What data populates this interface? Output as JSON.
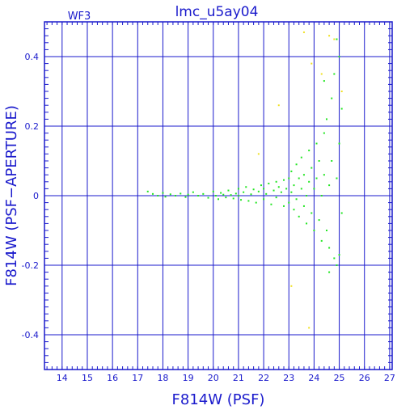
{
  "chart_data": {
    "type": "scatter",
    "title": "lmc_u5ay04",
    "panel_label": "WF3",
    "xlabel": "F814W (PSF)",
    "ylabel": "F814W (PSF−APERTURE)",
    "xlim": [
      13.3,
      27.1
    ],
    "ylim": [
      -0.5,
      0.5
    ],
    "xticks": [
      14,
      15,
      16,
      17,
      18,
      19,
      20,
      21,
      22,
      23,
      24,
      25,
      26,
      27
    ],
    "yticks": [
      -0.4,
      -0.2,
      0,
      0.2,
      0.4
    ],
    "ytick_labels": [
      "-0.4",
      "-0.2",
      "0",
      "0.2",
      "0.4"
    ],
    "grid": true,
    "colors": {
      "axes": "#1a1acc",
      "primary": "#22e622",
      "outlier": "#f0e020"
    },
    "series": [
      {
        "points": [
          [
            17.4,
            0.012
          ],
          [
            17.6,
            0.005
          ],
          [
            17.8,
            0.0
          ],
          [
            18.0,
            0.008
          ],
          [
            18.1,
            -0.003
          ],
          [
            18.3,
            0.004
          ],
          [
            18.5,
            0.0
          ],
          [
            18.7,
            0.006
          ],
          [
            18.9,
            -0.004
          ],
          [
            19.0,
            0.003
          ],
          [
            19.2,
            0.01
          ],
          [
            19.4,
            0.0
          ],
          [
            19.6,
            0.005
          ],
          [
            19.8,
            -0.006
          ],
          [
            20.0,
            0.012
          ],
          [
            20.1,
            0.0
          ],
          [
            20.2,
            -0.01
          ],
          [
            20.3,
            0.008
          ],
          [
            20.4,
            0.003
          ],
          [
            20.5,
            -0.005
          ],
          [
            20.6,
            0.015
          ],
          [
            20.7,
            0.002
          ],
          [
            20.8,
            -0.008
          ],
          [
            20.9,
            0.006
          ],
          [
            21.0,
            0.0
          ],
          [
            21.0,
            0.02
          ],
          [
            21.1,
            -0.012
          ],
          [
            21.2,
            0.01
          ],
          [
            21.3,
            0.025
          ],
          [
            21.4,
            -0.015
          ],
          [
            21.5,
            0.004
          ],
          [
            21.6,
            0.018
          ],
          [
            21.7,
            -0.02
          ],
          [
            21.8,
            0.012
          ],
          [
            21.9,
            0.03
          ],
          [
            22.0,
            -0.01
          ],
          [
            22.0,
            0.02
          ],
          [
            22.1,
            0.005
          ],
          [
            22.2,
            0.035
          ],
          [
            22.3,
            -0.025
          ],
          [
            22.4,
            0.015
          ],
          [
            22.5,
            0.04
          ],
          [
            22.5,
            -0.005
          ],
          [
            22.6,
            0.025
          ],
          [
            22.7,
            0.01
          ],
          [
            22.8,
            -0.03
          ],
          [
            22.8,
            0.045
          ],
          [
            22.9,
            0.02
          ],
          [
            23.0,
            -0.02
          ],
          [
            23.0,
            0.05
          ],
          [
            23.1,
            0.01
          ],
          [
            23.1,
            0.07
          ],
          [
            23.2,
            -0.04
          ],
          [
            23.2,
            0.03
          ],
          [
            23.3,
            0.09
          ],
          [
            23.3,
            -0.01
          ],
          [
            23.4,
            0.05
          ],
          [
            23.4,
            -0.06
          ],
          [
            23.5,
            0.02
          ],
          [
            23.5,
            0.11
          ],
          [
            23.6,
            -0.03
          ],
          [
            23.6,
            0.06
          ],
          [
            23.7,
            0.0
          ],
          [
            23.7,
            -0.08
          ],
          [
            23.8,
            0.13
          ],
          [
            23.8,
            0.04
          ],
          [
            23.9,
            -0.05
          ],
          [
            23.9,
            0.08
          ],
          [
            24.0,
            0.02
          ],
          [
            24.0,
            -0.1
          ],
          [
            24.1,
            0.15
          ],
          [
            24.1,
            0.05
          ],
          [
            24.2,
            -0.07
          ],
          [
            24.2,
            0.1
          ],
          [
            24.3,
            0.0
          ],
          [
            24.3,
            -0.13
          ],
          [
            24.4,
            0.18
          ],
          [
            24.4,
            0.06
          ],
          [
            24.5,
            -0.1
          ],
          [
            24.5,
            0.22
          ],
          [
            24.6,
            0.03
          ],
          [
            24.6,
            -0.15
          ],
          [
            24.7,
            0.28
          ],
          [
            24.7,
            0.1
          ],
          [
            24.8,
            -0.18
          ],
          [
            24.8,
            0.35
          ],
          [
            24.9,
            0.05
          ],
          [
            24.9,
            -0.2
          ],
          [
            25.0,
            0.4
          ],
          [
            25.0,
            0.15
          ],
          [
            25.1,
            -0.05
          ],
          [
            25.1,
            0.25
          ],
          [
            24.6,
            -0.22
          ],
          [
            24.9,
            0.45
          ],
          [
            25.0,
            -0.17
          ],
          [
            24.4,
            0.33
          ]
        ]
      },
      {
        "points": [
          [
            21.8,
            0.12
          ],
          [
            22.6,
            0.26
          ],
          [
            23.1,
            -0.26
          ],
          [
            23.6,
            0.47
          ],
          [
            23.9,
            0.38
          ],
          [
            24.3,
            0.35
          ],
          [
            24.6,
            0.46
          ],
          [
            24.8,
            0.45
          ],
          [
            25.1,
            0.3
          ],
          [
            23.8,
            -0.38
          ]
        ]
      }
    ]
  }
}
